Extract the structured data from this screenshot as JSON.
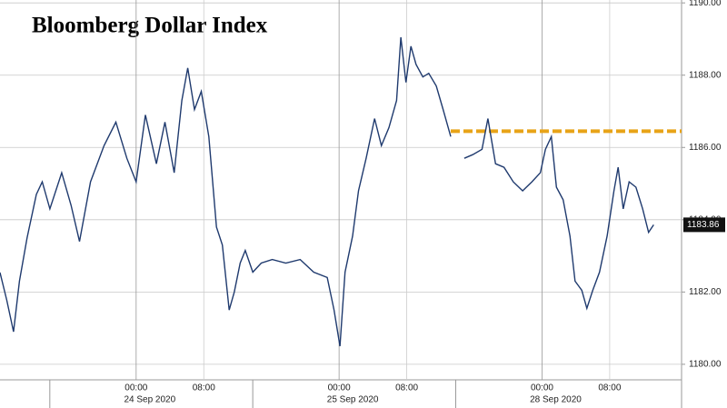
{
  "chart_data": {
    "type": "line",
    "title": "Bloomberg Dollar Index",
    "x": [
      -16.1,
      -15.3,
      -14.5,
      -13.8,
      -12.9,
      -11.8,
      -11.1,
      -10.2,
      -8.8,
      -7.7,
      -6.7,
      -5.4,
      -3.8,
      -2.4,
      -1.1,
      0,
      1.1,
      2.4,
      3.4,
      4.5,
      5.4,
      6.1,
      6.9,
      7.7,
      8.6,
      9.5,
      10.2,
      11.0,
      11.6,
      12.3,
      12.9,
      13.8,
      14.8,
      16.1,
      17.7,
      19.4,
      21.0,
      22.6,
      23.4,
      24.1,
      24.7,
      25.6,
      26.3,
      27.2,
      28.2,
      29.0,
      29.9,
      30.8,
      31.3,
      31.9,
      32.5,
      33.1,
      33.9,
      34.6,
      35.5,
      36.3,
      37.2,
      37.8,
      38.8,
      39.8,
      40.9,
      41.6,
      42.5,
      43.5,
      44.6,
      45.7,
      46.8,
      47.8,
      48.4,
      49.1,
      49.7,
      50.5,
      51.3,
      51.9,
      52.7,
      53.3,
      54.0,
      54.8,
      55.7,
      56.5,
      57.0,
      57.6,
      58.3,
      59.1,
      59.9,
      60.6,
      61.2
    ],
    "series": [
      {
        "color": "#1f3a6e",
        "values": [
          1182.54,
          1181.78,
          1180.9,
          1182.3,
          1183.5,
          1184.7,
          1185.05,
          1184.3,
          1185.3,
          1184.4,
          1183.4,
          1185.05,
          1186.05,
          1186.7,
          1185.7,
          1185.05,
          1186.9,
          1185.55,
          1186.7,
          1185.3,
          1187.3,
          1188.2,
          1187.05,
          1187.55,
          1186.3,
          1183.8,
          1183.3,
          1181.5,
          1182.0,
          1182.8,
          1183.15,
          1182.55,
          1182.8,
          1182.9,
          1182.8,
          1182.9,
          1182.55,
          1182.4,
          1181.5,
          1180.5,
          1182.55,
          1183.55,
          1184.8,
          1185.7,
          1186.8,
          1186.05,
          1186.55,
          1187.3,
          1189.05,
          1187.8,
          1188.8,
          1188.3,
          1187.95,
          1188.05,
          1187.7,
          1187.05,
          1186.3,
          null,
          1185.7,
          1185.8,
          1185.95,
          1186.8,
          1185.55,
          1185.45,
          1185.05,
          1184.8,
          1185.05,
          1185.3,
          1185.95,
          1186.3,
          1184.9,
          1184.55,
          1183.55,
          1182.3,
          1182.05,
          1181.55,
          1182.05,
          1182.55,
          1183.55,
          1184.8,
          1185.45,
          1184.3,
          1185.05,
          1184.9,
          1184.3,
          1183.65,
          1183.86
        ]
      }
    ],
    "xlim": [
      -16.1,
      64.5
    ],
    "xticks": [
      {
        "value": 0,
        "label": "00:00"
      },
      {
        "value": 8,
        "label": "08:00"
      },
      {
        "value": 24,
        "label": "00:00"
      },
      {
        "value": 32,
        "label": "08:00"
      },
      {
        "value": 48,
        "label": "00:00"
      },
      {
        "value": 56,
        "label": "08:00"
      }
    ],
    "date_labels": [
      "24 Sep 2020",
      "25 Sep 2020",
      "28 Sep 2020"
    ],
    "ylim": [
      1179.57,
      1190.08
    ],
    "yticks": [
      {
        "value": 1180,
        "label": "1180.00"
      },
      {
        "value": 1182,
        "label": "1182.00"
      },
      {
        "value": 1184,
        "label": "1184.00"
      },
      {
        "value": 1186,
        "label": "1186.00"
      },
      {
        "value": 1188,
        "label": "1188.00"
      },
      {
        "value": 1190,
        "label": "1190.00"
      }
    ],
    "grid": true,
    "reference_line": {
      "value": 1186.45,
      "xstart": 37.2,
      "color": "#e8a317"
    },
    "last_value_label": 1183.86
  }
}
